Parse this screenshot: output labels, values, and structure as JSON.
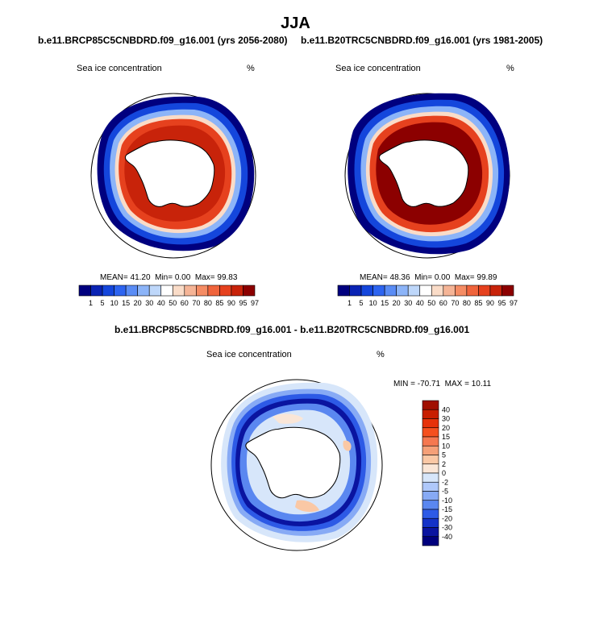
{
  "page_title": "JJA",
  "panels": [
    {
      "case_title": "b.e11.BRCP85C5CNBDRD.f09_g16.001 (yrs 2056-2080)",
      "variable": "Sea ice concentration",
      "units": "%",
      "stats": {
        "mean": "41.20",
        "min": "0.00",
        "max": "99.83"
      }
    },
    {
      "case_title": "b.e11.B20TRC5CNBDRD.f09_g16.001 (yrs 1981-2005)",
      "variable": "Sea ice concentration",
      "units": "%",
      "stats": {
        "mean": "48.36",
        "min": "0.00",
        "max": "99.89"
      }
    }
  ],
  "stat_labels": {
    "mean": "MEAN=",
    "min": "Min=",
    "max": "Max="
  },
  "colorbar_abs": {
    "labels": [
      "1",
      "5",
      "10",
      "15",
      "20",
      "30",
      "40",
      "50",
      "60",
      "70",
      "80",
      "85",
      "90",
      "95",
      "97"
    ],
    "colors": [
      "#00007f",
      "#0a23b4",
      "#1446dc",
      "#2d64f0",
      "#5a8cf5",
      "#8cb4f8",
      "#bed7fa",
      "#ffffff",
      "#fadcc8",
      "#f5b496",
      "#f58c64",
      "#f0643c",
      "#e6411e",
      "#c8230a",
      "#8c0000"
    ]
  },
  "difference": {
    "title": "b.e11.BRCP85C5CNBDRD.f09_g16.001 - b.e11.B20TRC5CNBDRD.f09_g16.001",
    "variable": "Sea ice concentration",
    "units": "%",
    "min_label": "MIN =",
    "min_value": "-70.71",
    "max_label": "MAX =",
    "max_value": "10.11",
    "colorbar": {
      "labels": [
        "40",
        "30",
        "20",
        "15",
        "10",
        "5",
        "2",
        "0",
        "-2",
        "-5",
        "-10",
        "-15",
        "-20",
        "-30",
        "-40"
      ],
      "colors": [
        "#a00f00",
        "#c81e00",
        "#e6320a",
        "#f5501e",
        "#f57850",
        "#f5a078",
        "#fac8a5",
        "#fae6d7",
        "#d7e6fa",
        "#afc8fa",
        "#87aaf5",
        "#5a87f0",
        "#2d5ae6",
        "#1432c8",
        "#0a14a0",
        "#00007d"
      ]
    }
  }
}
